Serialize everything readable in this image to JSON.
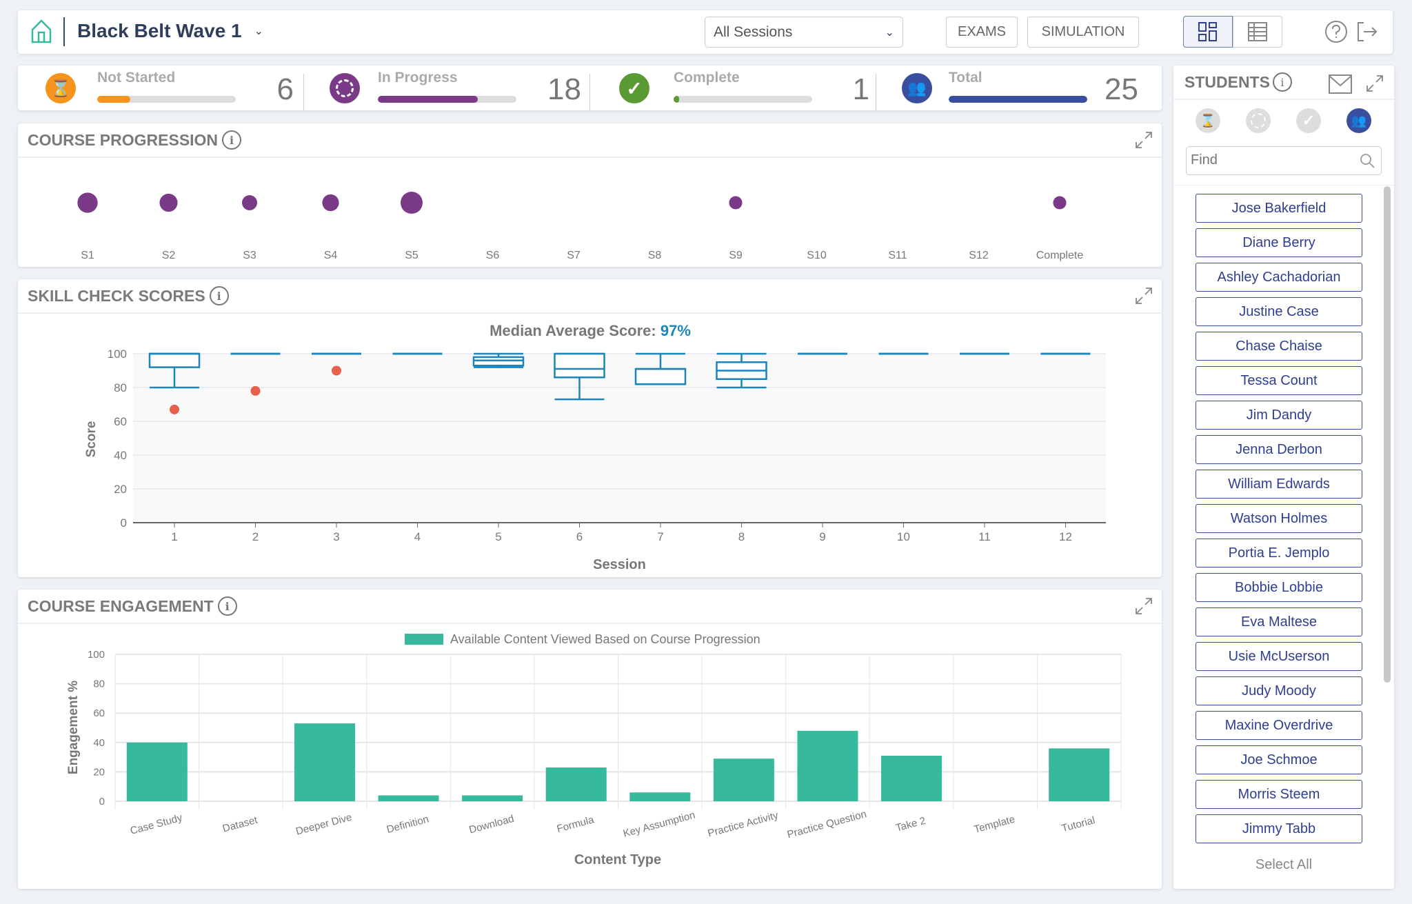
{
  "header": {
    "title": "Black Belt Wave 1",
    "session_select": "All Sessions",
    "exams_label": "EXAMS",
    "simulation_label": "SIMULATION"
  },
  "stats": [
    {
      "label": "Not Started",
      "value": "6",
      "fraction": 0.24,
      "color": "#f7941d"
    },
    {
      "label": "In Progress",
      "value": "18",
      "fraction": 0.72,
      "color": "#7b3a87"
    },
    {
      "label": "Complete",
      "value": "1",
      "fraction": 0.04,
      "color": "#5a9a32"
    },
    {
      "label": "Total",
      "value": "25",
      "fraction": 1.0,
      "color": "#3a4ea0"
    }
  ],
  "progression": {
    "title": "COURSE PROGRESSION"
  },
  "skill": {
    "title": "SKILL CHECK SCORES",
    "median_label": "Median Average Score:",
    "median_value": "97%"
  },
  "engagement": {
    "title": "COURSE ENGAGEMENT"
  },
  "students": {
    "title": "STUDENTS",
    "find_placeholder": "Find",
    "select_all": "Select All",
    "list": [
      "Jose Bakerfield",
      "Diane Berry",
      "Ashley Cachadorian",
      "Justine Case",
      "Chase Chaise",
      "Tessa Count",
      "Jim Dandy",
      "Jenna Derbon",
      "William Edwards",
      "Watson Holmes",
      "Portia E. Jemplo",
      "Bobbie Lobbie",
      "Eva Maltese",
      "Usie McUserson",
      "Judy Moody",
      "Maxine Overdrive",
      "Joe Schmoe",
      "Morris Steem",
      "Jimmy Tabb"
    ]
  },
  "chart_data": [
    {
      "type": "scatter",
      "title": "COURSE PROGRESSION",
      "categories": [
        "S1",
        "S2",
        "S3",
        "S4",
        "S5",
        "S6",
        "S7",
        "S8",
        "S9",
        "S10",
        "S11",
        "S12",
        "Complete"
      ],
      "values": [
        6,
        4,
        2,
        3,
        8,
        0,
        0,
        0,
        1,
        0,
        0,
        0,
        1
      ],
      "color": "#7b3a87"
    },
    {
      "type": "box",
      "title": "Median Average Score: 97%",
      "xlabel": "Session",
      "ylabel": "Score",
      "ylim": [
        0,
        100
      ],
      "yticks": [
        0,
        20,
        40,
        60,
        80,
        100
      ],
      "categories": [
        "1",
        "2",
        "3",
        "4",
        "5",
        "6",
        "7",
        "8",
        "9",
        "10",
        "11",
        "12"
      ],
      "boxes": [
        [
          80,
          92,
          100,
          100,
          100
        ],
        [
          100,
          100,
          100,
          100,
          100
        ],
        [
          100,
          100,
          100,
          100,
          100
        ],
        [
          100,
          100,
          100,
          100,
          100
        ],
        [
          92,
          93,
          96,
          98,
          100
        ],
        [
          73,
          86,
          91,
          100,
          100
        ],
        [
          82,
          82,
          91,
          91,
          100
        ],
        [
          80,
          85,
          90,
          95,
          100
        ],
        [
          100,
          100,
          100,
          100,
          100
        ],
        [
          100,
          100,
          100,
          100,
          100
        ],
        [
          100,
          100,
          100,
          100,
          100
        ],
        [
          100,
          100,
          100,
          100,
          100
        ]
      ],
      "outliers": [
        [
          1,
          67
        ],
        [
          2,
          78
        ],
        [
          3,
          90
        ]
      ],
      "box_color": "#1a85b8",
      "outlier_color": "#e8604c"
    },
    {
      "type": "bar",
      "title": "",
      "legend": "Available Content Viewed Based on Course Progression",
      "xlabel": "Content Type",
      "ylabel": "Engagement %",
      "ylim": [
        0,
        100
      ],
      "yticks": [
        0,
        20,
        40,
        60,
        80,
        100
      ],
      "categories": [
        "Case Study",
        "Dataset",
        "Deeper Dive",
        "Definition",
        "Download",
        "Formula",
        "Key Assumption",
        "Practice Activity",
        "Practice Question",
        "Take 2",
        "Template",
        "Tutorial"
      ],
      "values": [
        40,
        0,
        53,
        4,
        4,
        23,
        6,
        29,
        48,
        31,
        0,
        36
      ],
      "color": "#36b99c"
    }
  ]
}
